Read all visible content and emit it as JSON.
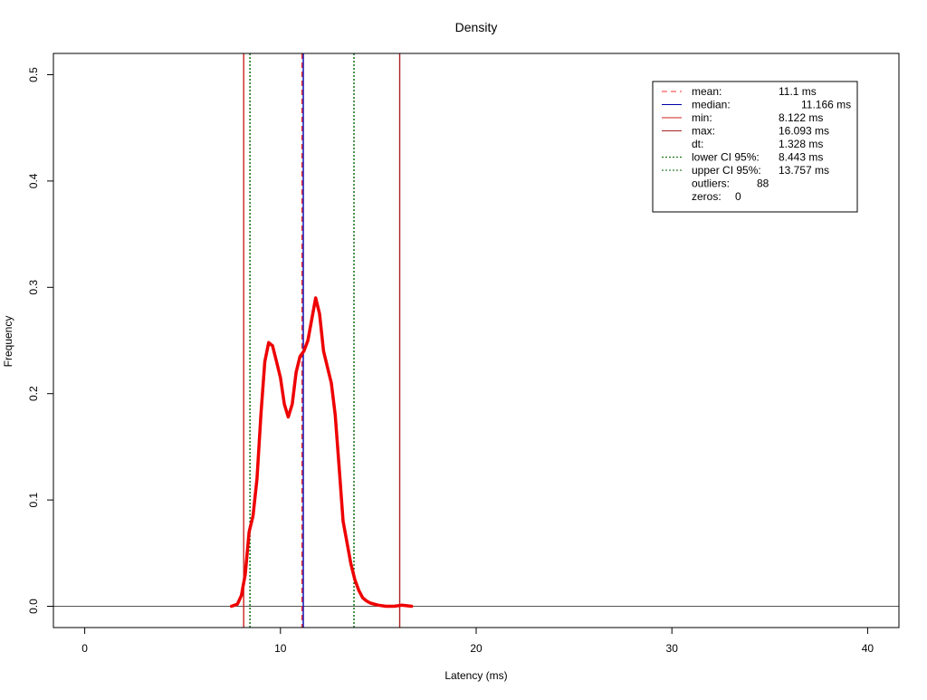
{
  "chart_data": {
    "type": "line",
    "title": "Density",
    "xlabel": "Latency (ms)",
    "ylabel": "Frequency",
    "xlim": [
      -1.6,
      41.6
    ],
    "ylim": [
      -0.02,
      0.52
    ],
    "x_ticks": [
      0,
      10,
      20,
      30,
      40
    ],
    "y_ticks": [
      0.0,
      0.1,
      0.2,
      0.3,
      0.4,
      0.5
    ],
    "x_tick_labels": [
      "0",
      "10",
      "20",
      "30",
      "40"
    ],
    "y_tick_labels": [
      "0.0",
      "0.1",
      "0.2",
      "0.3",
      "0.4",
      "0.5"
    ],
    "grid": false,
    "legend_position": "top-right",
    "density": {
      "color": "#ee0000",
      "x": [
        7.5,
        7.8,
        8.0,
        8.2,
        8.4,
        8.6,
        8.8,
        9.0,
        9.2,
        9.4,
        9.6,
        9.8,
        10.0,
        10.2,
        10.4,
        10.6,
        10.8,
        11.0,
        11.2,
        11.4,
        11.6,
        11.8,
        12.0,
        12.2,
        12.4,
        12.6,
        12.8,
        13.0,
        13.2,
        13.4,
        13.6,
        13.8,
        14.0,
        14.2,
        14.4,
        14.6,
        14.8,
        15.0,
        15.4,
        15.8,
        16.2,
        16.7
      ],
      "y": [
        0.0,
        0.002,
        0.01,
        0.03,
        0.07,
        0.085,
        0.12,
        0.18,
        0.23,
        0.248,
        0.245,
        0.23,
        0.215,
        0.19,
        0.178,
        0.19,
        0.22,
        0.235,
        0.24,
        0.25,
        0.27,
        0.29,
        0.275,
        0.24,
        0.225,
        0.21,
        0.18,
        0.13,
        0.08,
        0.06,
        0.04,
        0.025,
        0.015,
        0.008,
        0.005,
        0.003,
        0.002,
        0.001,
        0.0,
        0.0,
        0.001,
        0.0
      ]
    },
    "vertical_lines": [
      {
        "label": "mean",
        "x": 11.1,
        "color": "#ff3333",
        "style": "dashed"
      },
      {
        "label": "median",
        "x": 11.166,
        "color": "#0000aa",
        "style": "solid"
      },
      {
        "label": "min",
        "x": 8.122,
        "color": "#cc2222",
        "style": "solid"
      },
      {
        "label": "max",
        "x": 16.093,
        "color": "#aa2222",
        "style": "solid"
      },
      {
        "label": "lower CI 95%",
        "x": 8.443,
        "color": "#006600",
        "style": "dotted"
      },
      {
        "label": "upper CI 95%",
        "x": 13.757,
        "color": "#006600",
        "style": "dotted"
      }
    ],
    "legend": [
      {
        "label": "mean:",
        "value": "11.1 ms",
        "color": "#ff3333",
        "style": "dashed"
      },
      {
        "label": "median:",
        "value": "11.166 ms",
        "color": "#0000aa",
        "style": "solid"
      },
      {
        "label": "min:",
        "value": "8.122 ms",
        "color": "#cc2222",
        "style": "solid"
      },
      {
        "label": "max:",
        "value": "16.093 ms",
        "color": "#aa2222",
        "style": "solid"
      },
      {
        "label": "dt:",
        "value": "1.328 ms",
        "color": "",
        "style": "none"
      },
      {
        "label": "lower CI 95%:",
        "value": "8.443 ms",
        "color": "#006600",
        "style": "dotted"
      },
      {
        "label": "upper CI 95%:",
        "value": "13.757 ms",
        "color": "#006600",
        "style": "dotted"
      },
      {
        "label": "outliers:",
        "value": "88",
        "color": "",
        "style": "none"
      },
      {
        "label": "zeros:",
        "value": "0",
        "color": "",
        "style": "none"
      }
    ]
  }
}
